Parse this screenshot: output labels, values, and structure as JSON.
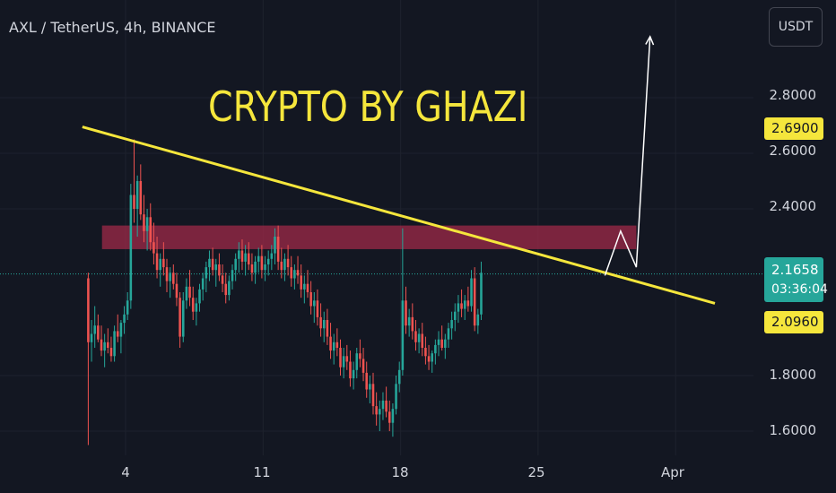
{
  "header": {
    "symbol_title": "AXL / TetherUS, 4h, BINANCE",
    "currency_button": "USDT"
  },
  "watermark_text": "CRYPTO BY GHAZI",
  "chart_data": {
    "type": "candlestick",
    "title": "AXL / TetherUS, 4h, BINANCE",
    "quote_currency": "USDT",
    "interval": "4h",
    "exchange": "BINANCE",
    "x_axis": {
      "ticks": [
        "4",
        "11",
        "18",
        "25",
        "Apr"
      ],
      "tick_days": [
        4,
        11,
        18,
        25,
        32
      ],
      "range_days": [
        1.0,
        33.5
      ]
    },
    "y_axis": {
      "ticks": [
        "1.6000",
        "1.8000",
        "2.4000",
        "2.6000",
        "2.8000"
      ],
      "range": [
        1.52,
        2.95
      ],
      "side": "right"
    },
    "first_bar_day": 2.1,
    "bar_interval_days": 0.1667,
    "series_bars": [
      [
        2.15,
        2.17,
        1.55,
        1.92
      ],
      [
        1.92,
        2.0,
        1.85,
        1.95
      ],
      [
        1.95,
        2.05,
        1.9,
        1.98
      ],
      [
        1.98,
        2.02,
        1.92,
        1.93
      ],
      [
        1.93,
        1.98,
        1.87,
        1.89
      ],
      [
        1.89,
        1.95,
        1.83,
        1.92
      ],
      [
        1.92,
        1.97,
        1.88,
        1.9
      ],
      [
        1.9,
        1.94,
        1.85,
        1.87
      ],
      [
        1.87,
        1.98,
        1.85,
        1.96
      ],
      [
        1.96,
        2.02,
        1.92,
        1.94
      ],
      [
        1.94,
        2.0,
        1.88,
        1.99
      ],
      [
        1.99,
        2.05,
        1.95,
        2.02
      ],
      [
        2.02,
        2.1,
        2.0,
        2.07
      ],
      [
        2.07,
        2.49,
        2.04,
        2.45
      ],
      [
        2.45,
        2.65,
        2.35,
        2.4
      ],
      [
        2.4,
        2.52,
        2.3,
        2.5
      ],
      [
        2.5,
        2.56,
        2.36,
        2.38
      ],
      [
        2.38,
        2.45,
        2.28,
        2.32
      ],
      [
        2.32,
        2.4,
        2.25,
        2.37
      ],
      [
        2.37,
        2.42,
        2.25,
        2.28
      ],
      [
        2.28,
        2.35,
        2.2,
        2.24
      ],
      [
        2.24,
        2.3,
        2.15,
        2.18
      ],
      [
        2.18,
        2.24,
        2.12,
        2.22
      ],
      [
        2.22,
        2.28,
        2.16,
        2.19
      ],
      [
        2.19,
        2.22,
        2.1,
        2.14
      ],
      [
        2.14,
        2.19,
        2.08,
        2.17
      ],
      [
        2.17,
        2.2,
        2.11,
        2.13
      ],
      [
        2.13,
        2.17,
        2.05,
        2.08
      ],
      [
        2.08,
        2.1,
        1.9,
        1.94
      ],
      [
        1.94,
        2.1,
        1.92,
        2.07
      ],
      [
        2.07,
        2.15,
        2.04,
        2.12
      ],
      [
        2.12,
        2.18,
        2.05,
        2.08
      ],
      [
        2.08,
        2.12,
        2.0,
        2.03
      ],
      [
        2.03,
        2.08,
        1.98,
        2.06
      ],
      [
        2.06,
        2.13,
        2.03,
        2.11
      ],
      [
        2.11,
        2.17,
        2.07,
        2.15
      ],
      [
        2.15,
        2.21,
        2.1,
        2.19
      ],
      [
        2.19,
        2.25,
        2.14,
        2.22
      ],
      [
        2.22,
        2.26,
        2.16,
        2.18
      ],
      [
        2.18,
        2.22,
        2.12,
        2.2
      ],
      [
        2.2,
        2.24,
        2.14,
        2.16
      ],
      [
        2.16,
        2.2,
        2.1,
        2.13
      ],
      [
        2.13,
        2.17,
        2.06,
        2.09
      ],
      [
        2.09,
        2.16,
        2.07,
        2.14
      ],
      [
        2.14,
        2.2,
        2.11,
        2.18
      ],
      [
        2.18,
        2.24,
        2.14,
        2.22
      ],
      [
        2.22,
        2.28,
        2.17,
        2.25
      ],
      [
        2.25,
        2.29,
        2.18,
        2.21
      ],
      [
        2.21,
        2.27,
        2.16,
        2.24
      ],
      [
        2.24,
        2.28,
        2.18,
        2.2
      ],
      [
        2.2,
        2.24,
        2.14,
        2.17
      ],
      [
        2.17,
        2.23,
        2.13,
        2.21
      ],
      [
        2.21,
        2.26,
        2.17,
        2.23
      ],
      [
        2.23,
        2.27,
        2.15,
        2.18
      ],
      [
        2.18,
        2.23,
        2.14,
        2.2
      ],
      [
        2.2,
        2.25,
        2.16,
        2.22
      ],
      [
        2.22,
        2.27,
        2.18,
        2.24
      ],
      [
        2.24,
        2.33,
        2.2,
        2.3
      ],
      [
        2.3,
        2.34,
        2.18,
        2.21
      ],
      [
        2.21,
        2.26,
        2.15,
        2.18
      ],
      [
        2.18,
        2.24,
        2.14,
        2.22
      ],
      [
        2.22,
        2.27,
        2.16,
        2.19
      ],
      [
        2.19,
        2.23,
        2.12,
        2.15
      ],
      [
        2.15,
        2.2,
        2.11,
        2.18
      ],
      [
        2.18,
        2.23,
        2.13,
        2.16
      ],
      [
        2.16,
        2.2,
        2.08,
        2.11
      ],
      [
        2.11,
        2.16,
        2.06,
        2.13
      ],
      [
        2.13,
        2.18,
        2.08,
        2.1
      ],
      [
        2.1,
        2.14,
        2.02,
        2.05
      ],
      [
        2.05,
        2.1,
        1.99,
        2.07
      ],
      [
        2.07,
        2.11,
        1.98,
        2.01
      ],
      [
        2.01,
        2.06,
        1.94,
        1.97
      ],
      [
        1.97,
        2.03,
        1.92,
        2.0
      ],
      [
        2.0,
        2.04,
        1.91,
        1.94
      ],
      [
        1.94,
        1.99,
        1.86,
        1.89
      ],
      [
        1.89,
        1.95,
        1.84,
        1.92
      ],
      [
        1.92,
        1.97,
        1.87,
        1.9
      ],
      [
        1.9,
        1.93,
        1.8,
        1.83
      ],
      [
        1.83,
        1.9,
        1.79,
        1.87
      ],
      [
        1.87,
        1.91,
        1.82,
        1.85
      ],
      [
        1.85,
        1.89,
        1.76,
        1.79
      ],
      [
        1.79,
        1.85,
        1.75,
        1.82
      ],
      [
        1.82,
        1.9,
        1.79,
        1.88
      ],
      [
        1.88,
        1.93,
        1.83,
        1.86
      ],
      [
        1.86,
        1.9,
        1.78,
        1.81
      ],
      [
        1.81,
        1.85,
        1.72,
        1.75
      ],
      [
        1.75,
        1.8,
        1.7,
        1.77
      ],
      [
        1.77,
        1.81,
        1.66,
        1.69
      ],
      [
        1.69,
        1.74,
        1.62,
        1.66
      ],
      [
        1.66,
        1.71,
        1.6,
        1.68
      ],
      [
        1.68,
        1.74,
        1.64,
        1.71
      ],
      [
        1.71,
        1.76,
        1.65,
        1.67
      ],
      [
        1.67,
        1.71,
        1.6,
        1.63
      ],
      [
        1.63,
        1.7,
        1.58,
        1.68
      ],
      [
        1.68,
        1.8,
        1.66,
        1.77
      ],
      [
        1.77,
        1.85,
        1.74,
        1.82
      ],
      [
        1.82,
        2.33,
        1.8,
        2.07
      ],
      [
        2.07,
        2.12,
        1.95,
        1.98
      ],
      [
        1.98,
        2.04,
        1.94,
        2.01
      ],
      [
        2.01,
        2.06,
        1.93,
        1.96
      ],
      [
        1.96,
        2.0,
        1.89,
        1.92
      ],
      [
        1.92,
        1.97,
        1.88,
        1.95
      ],
      [
        1.95,
        1.99,
        1.87,
        1.9
      ],
      [
        1.9,
        1.94,
        1.84,
        1.87
      ],
      [
        1.87,
        1.91,
        1.82,
        1.85
      ],
      [
        1.85,
        1.89,
        1.81,
        1.88
      ],
      [
        1.88,
        1.93,
        1.84,
        1.91
      ],
      [
        1.91,
        1.96,
        1.87,
        1.93
      ],
      [
        1.93,
        1.98,
        1.89,
        1.9
      ],
      [
        1.9,
        1.95,
        1.86,
        1.93
      ],
      [
        1.93,
        1.99,
        1.9,
        1.97
      ],
      [
        1.97,
        2.03,
        1.93,
        2.0
      ],
      [
        2.0,
        2.06,
        1.96,
        2.03
      ],
      [
        2.03,
        2.09,
        1.99,
        2.06
      ],
      [
        2.06,
        2.11,
        2.01,
        2.04
      ],
      [
        2.04,
        2.09,
        2.0,
        2.07
      ],
      [
        2.07,
        2.12,
        2.03,
        2.05
      ],
      [
        2.05,
        2.18,
        2.03,
        2.15
      ],
      [
        2.15,
        2.19,
        1.96,
        1.98
      ],
      [
        1.98,
        2.04,
        1.95,
        2.02
      ],
      [
        2.02,
        2.21,
        2.0,
        2.17
      ]
    ],
    "horizontal_levels": [
      2.1658,
      2.69,
      2.096
    ],
    "price_labels": {
      "upper": "2.6900",
      "current": "2.1658",
      "countdown": "03:36:04",
      "lower": "2.0960"
    },
    "annotations": {
      "resistance_zone": {
        "day_start": 2.8,
        "day_end": 30.0,
        "price_low": 2.255,
        "price_high": 2.34
      },
      "trendline": {
        "start": [
          1.8,
          2.695
        ],
        "end": [
          34.0,
          2.06
        ]
      },
      "projection_path": [
        [
          28.4,
          2.16
        ],
        [
          29.2,
          2.32
        ],
        [
          30.0,
          2.19
        ],
        [
          30.7,
          3.02
        ]
      ]
    }
  }
}
